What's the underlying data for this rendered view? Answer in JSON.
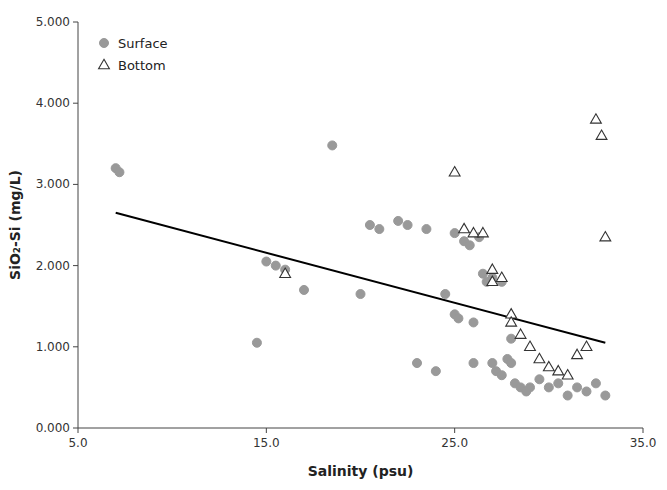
{
  "chart_data": {
    "type": "scatter",
    "xlabel": "Salinity (psu)",
    "ylabel": "SiO₂-Si (mg/L)",
    "xlim": [
      5.0,
      35.0
    ],
    "ylim": [
      0.0,
      5.0
    ],
    "xticks": [
      {
        "value": 5.0,
        "label": "5.0"
      },
      {
        "value": 15.0,
        "label": "15.0"
      },
      {
        "value": 25.0,
        "label": "25.0"
      },
      {
        "value": 35.0,
        "label": "35.0"
      }
    ],
    "yticks": [
      {
        "value": 0.0,
        "label": "0.000"
      },
      {
        "value": 1.0,
        "label": "1.000"
      },
      {
        "value": 2.0,
        "label": "2.000"
      },
      {
        "value": 3.0,
        "label": "3.000"
      },
      {
        "value": 4.0,
        "label": "4.000"
      },
      {
        "value": 5.0,
        "label": "5.000"
      }
    ],
    "grid": false,
    "legend": "upper left",
    "series": [
      {
        "name": "Surface",
        "type": "scatter",
        "color": "#999999",
        "marker": "circle",
        "x": [
          7.0,
          7.2,
          14.5,
          15.0,
          15.5,
          16.0,
          17.0,
          18.5,
          20.0,
          20.5,
          21.0,
          22.0,
          22.5,
          23.0,
          23.5,
          24.0,
          24.5,
          25.0,
          25.0,
          25.2,
          25.5,
          25.8,
          26.0,
          26.0,
          26.3,
          26.5,
          26.7,
          27.0,
          27.0,
          27.2,
          27.5,
          27.5,
          27.8,
          28.0,
          28.0,
          28.2,
          28.5,
          28.8,
          29.0,
          29.5,
          30.0,
          30.5,
          31.0,
          31.5,
          32.0,
          32.5,
          33.0
        ],
        "values": [
          3.2,
          3.15,
          1.05,
          2.05,
          2.0,
          1.95,
          1.7,
          3.48,
          1.65,
          2.5,
          2.45,
          2.55,
          2.5,
          0.8,
          2.45,
          0.7,
          1.65,
          2.4,
          1.4,
          1.35,
          2.3,
          2.25,
          1.3,
          0.8,
          2.35,
          1.9,
          1.8,
          1.85,
          0.8,
          0.7,
          0.65,
          1.8,
          0.85,
          1.1,
          0.8,
          0.55,
          0.5,
          0.45,
          0.5,
          0.6,
          0.5,
          0.55,
          0.4,
          0.5,
          0.45,
          0.55,
          0.4
        ]
      },
      {
        "name": "Bottom",
        "type": "scatter",
        "color": "#333333",
        "marker": "open-triangle",
        "x": [
          16.0,
          25.0,
          25.5,
          26.0,
          26.5,
          27.0,
          27.0,
          27.5,
          28.0,
          28.0,
          28.5,
          29.0,
          29.5,
          30.0,
          30.5,
          31.0,
          31.5,
          32.0,
          32.5,
          32.8,
          33.0
        ],
        "values": [
          1.9,
          3.15,
          2.45,
          2.4,
          2.4,
          1.8,
          1.95,
          1.85,
          1.4,
          1.3,
          1.15,
          1.0,
          0.85,
          0.75,
          0.7,
          0.65,
          0.9,
          1.0,
          3.8,
          3.6,
          2.35
        ]
      },
      {
        "type": "line",
        "color": "#000000",
        "line_style": "solid",
        "x": [
          7.0,
          33.0
        ],
        "values": [
          2.65,
          1.05
        ]
      }
    ]
  }
}
